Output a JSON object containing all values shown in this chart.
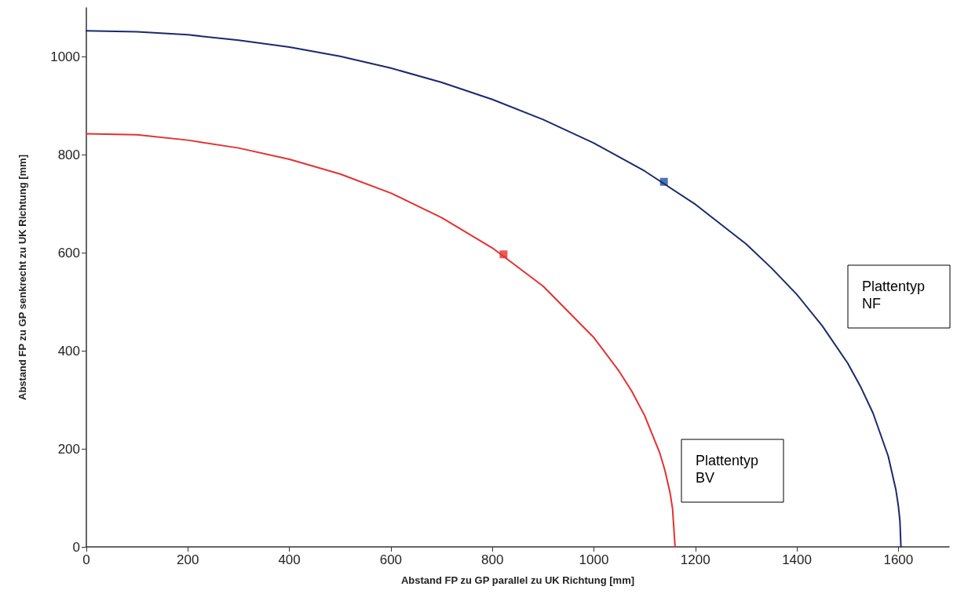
{
  "chart_data": {
    "type": "line",
    "xlabel": "Abstand FP zu GP parallel zu UK Richtung [mm]",
    "ylabel": "Abstand FP zu GP senkrecht zu UK Richtung [mm]",
    "xlim": [
      0,
      1700
    ],
    "ylim": [
      0,
      1100
    ],
    "xticks": [
      0,
      200,
      400,
      600,
      800,
      1000,
      1200,
      1400,
      1600
    ],
    "yticks": [
      0,
      200,
      400,
      600,
      800,
      1000
    ],
    "grid": false,
    "line_style": "solid",
    "series": [
      {
        "color": "#e53030",
        "x": [
          0,
          100,
          200,
          300,
          400,
          500,
          600,
          700,
          800,
          900,
          1000,
          1050,
          1075,
          1100,
          1130,
          1140,
          1150,
          1155,
          1160
        ],
        "values": [
          843,
          841,
          830,
          814,
          791,
          761,
          722,
          672,
          610,
          532,
          427,
          358,
          317,
          268,
          191,
          156,
          111,
          78,
          0
        ]
      },
      {
        "color": "#1a2a6c",
        "x": [
          0,
          100,
          200,
          300,
          400,
          500,
          600,
          700,
          800,
          900,
          1000,
          1100,
          1200,
          1300,
          1350,
          1400,
          1450,
          1500,
          1525,
          1550,
          1580,
          1595,
          1600,
          1603,
          1605
        ],
        "values": [
          1053,
          1051,
          1045,
          1034,
          1020,
          1001,
          977,
          948,
          913,
          872,
          824,
          767,
          699,
          618,
          569,
          515,
          451,
          375,
          328,
          273,
          185,
          117,
          83,
          53,
          0
        ]
      },
      {
        "type": "scatter",
        "marker": "square",
        "color": "#e8302a",
        "x": [
          822
        ],
        "values": [
          597
        ]
      },
      {
        "type": "scatter",
        "marker": "square",
        "color": "#1f4fa0",
        "x": [
          1138
        ],
        "values": [
          745
        ]
      }
    ],
    "annotations": [
      "Plattentyp\nBV",
      "Plattentyp\nNF"
    ]
  }
}
